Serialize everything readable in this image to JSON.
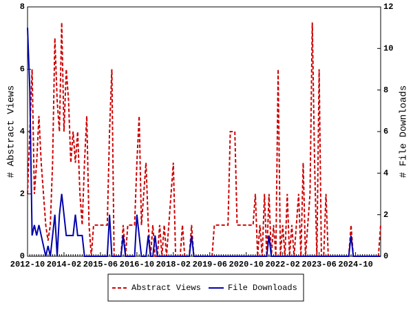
{
  "chart_data": {
    "type": "line",
    "y_label": "# Abstract Views",
    "y2_label": "# File Downloads",
    "categories": [
      "2012-10",
      null,
      null,
      null,
      null,
      null,
      null,
      null,
      null,
      null,
      null,
      null,
      null,
      null,
      null,
      null,
      "2014-02",
      null,
      null,
      null,
      null,
      null,
      null,
      null,
      null,
      null,
      null,
      null,
      null,
      null,
      null,
      null,
      "2015-06",
      null,
      null,
      null,
      null,
      null,
      null,
      null,
      null,
      null,
      null,
      null,
      null,
      null,
      null,
      null,
      "2016-10",
      null,
      null,
      null,
      null,
      null,
      null,
      null,
      null,
      null,
      null,
      null,
      null,
      null,
      null,
      null,
      "2018-02",
      null,
      null,
      null,
      null,
      null,
      null,
      null,
      null,
      null,
      null,
      null,
      null,
      null,
      null,
      null,
      "2019-06",
      null,
      null,
      null,
      null,
      null,
      null,
      null,
      null,
      null,
      null,
      null,
      null,
      null,
      null,
      null,
      "2020-10",
      null,
      null,
      null,
      null,
      null,
      null,
      null,
      null,
      null,
      null,
      null,
      null,
      null,
      null,
      null,
      "2022-02",
      null,
      null,
      null,
      null,
      null,
      null,
      null,
      null,
      null,
      null,
      null,
      null,
      null,
      null,
      null,
      "2023-06",
      null,
      null,
      null,
      null,
      null,
      null,
      null,
      null,
      null,
      null,
      null,
      null,
      null,
      null,
      null,
      "2024-10",
      null,
      null,
      null,
      null,
      null,
      null,
      null,
      null,
      null,
      null,
      null
    ],
    "series": [
      {
        "name": "Abstract Views",
        "color": "#cc0000",
        "dashed": true,
        "values": [
          2,
          4,
          6,
          2,
          3,
          4.5,
          3,
          2,
          1,
          0.5,
          1,
          3,
          7,
          5,
          4,
          7.5,
          4,
          6,
          5,
          3,
          4,
          3,
          4,
          2,
          1,
          3,
          4.5,
          1,
          0,
          1,
          1,
          1,
          1,
          1,
          1,
          1,
          4,
          6,
          0,
          0,
          0,
          0,
          1,
          0,
          1,
          1,
          1,
          1,
          3,
          4.5,
          1,
          2,
          3,
          1,
          0,
          1,
          0,
          0,
          1,
          0,
          1,
          0,
          1,
          2,
          3,
          0,
          0,
          0,
          1,
          0,
          0,
          0,
          1,
          0,
          0,
          0,
          0,
          0,
          0,
          0,
          0,
          0,
          1,
          1,
          1,
          1,
          1,
          1,
          1,
          4,
          4,
          4,
          1,
          1,
          1,
          1,
          1,
          1,
          1,
          1,
          2,
          0,
          1,
          0,
          2,
          0,
          2,
          0,
          1,
          0,
          6,
          0,
          1,
          0,
          2,
          0,
          1,
          0,
          1,
          2,
          0,
          3,
          0,
          1,
          2,
          7.5,
          3,
          0,
          6,
          0,
          0,
          2,
          0,
          0,
          0,
          0,
          0,
          0,
          0,
          0,
          0,
          0,
          1,
          0,
          0,
          0,
          0,
          0,
          0,
          0,
          0,
          0,
          0,
          0,
          0,
          1
        ]
      },
      {
        "name": "File Downloads",
        "color": "#0000aa",
        "axis": "y2",
        "values": [
          11,
          8,
          1,
          1.5,
          1,
          1.5,
          1,
          0.5,
          0,
          0.5,
          0,
          1,
          2,
          0,
          2,
          3,
          2,
          1,
          1,
          1,
          1,
          2,
          1,
          1,
          1,
          0,
          0,
          0,
          0,
          0,
          0,
          0,
          0,
          0,
          0,
          0,
          2,
          0,
          0,
          0,
          0,
          0,
          1,
          0,
          0,
          0,
          0,
          0,
          2,
          1,
          0,
          0,
          0,
          1,
          0,
          0,
          1,
          0,
          0,
          0,
          0,
          0,
          0,
          0,
          0,
          0,
          0,
          0,
          0,
          0,
          0,
          0,
          1,
          0,
          0,
          0,
          0,
          0,
          0,
          0,
          0,
          0,
          0,
          0,
          0,
          0,
          0,
          0,
          0,
          0,
          0,
          0,
          0,
          0,
          0,
          0,
          0,
          0,
          0,
          0,
          0,
          0,
          0,
          0,
          0,
          0,
          1,
          0,
          0,
          0,
          0,
          0,
          0,
          0,
          0,
          0,
          0,
          0,
          0,
          0,
          0,
          0,
          0,
          0,
          0,
          0,
          0,
          0,
          0,
          0,
          0,
          0,
          0,
          0,
          0,
          0,
          0,
          0,
          0,
          0,
          0,
          0,
          1,
          0,
          0,
          0,
          0,
          0,
          0,
          0,
          0,
          0,
          0,
          0,
          0,
          0
        ]
      }
    ],
    "ylim": [
      0,
      8
    ],
    "yticks": [
      0,
      2,
      4,
      6,
      8
    ],
    "y2lim": [
      0,
      12
    ],
    "y2ticks": [
      0,
      2,
      4,
      6,
      8,
      10,
      12
    ],
    "legend": "bottom"
  }
}
